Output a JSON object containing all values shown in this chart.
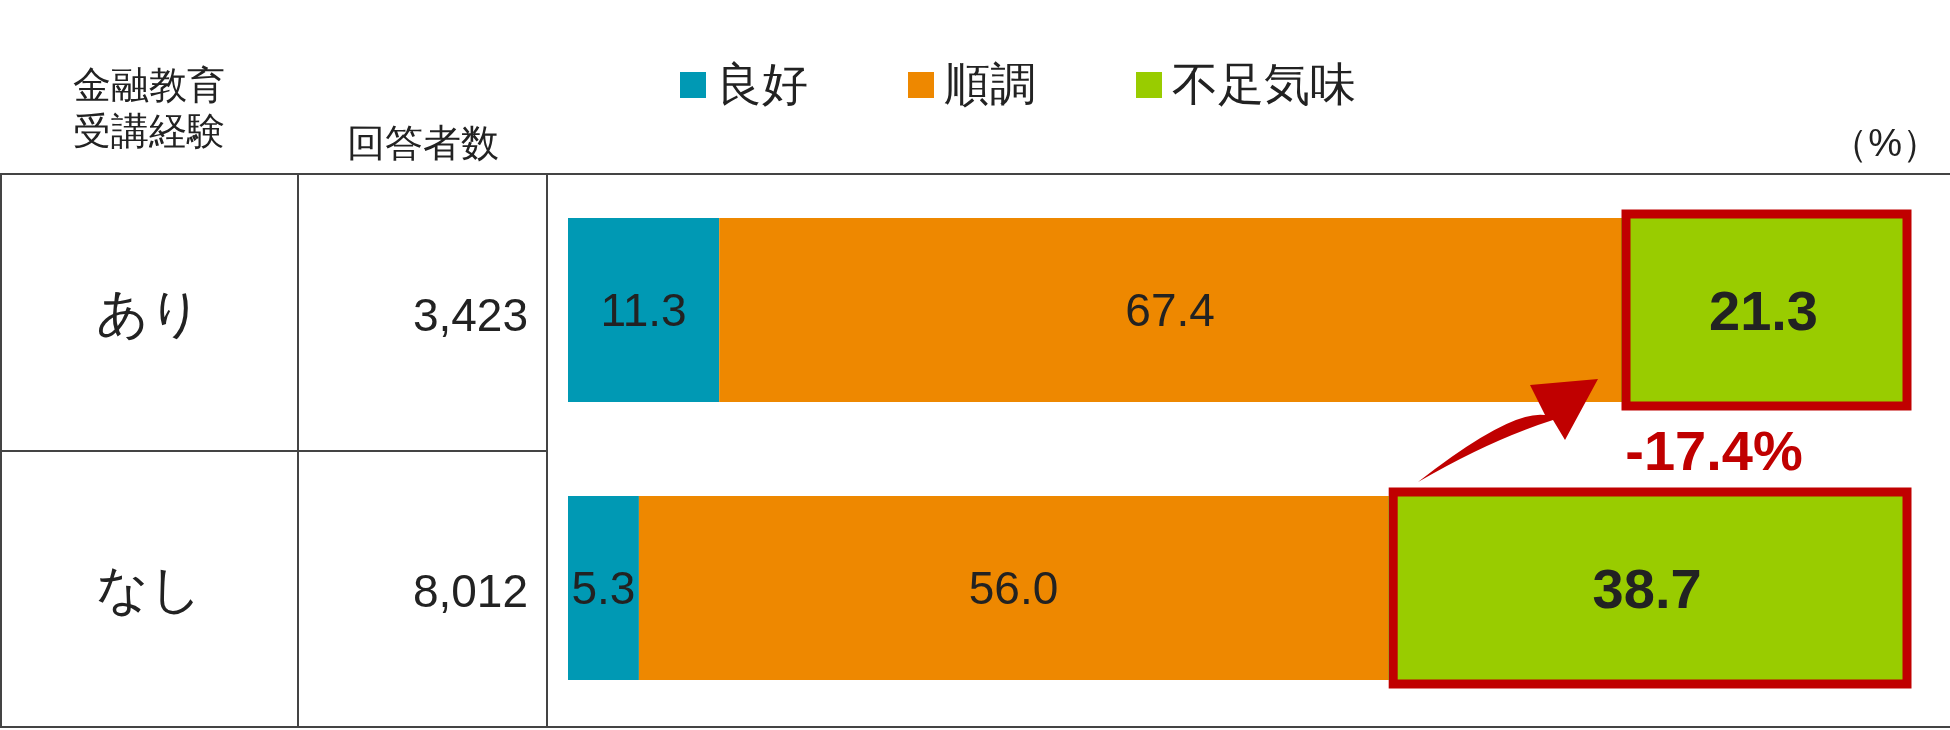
{
  "chart_data": {
    "type": "bar",
    "orientation": "horizontal",
    "stacked": true,
    "ylabel": "金融教育受講経験",
    "categories": [
      "あり",
      "なし"
    ],
    "xlim": [
      0,
      100
    ],
    "legend": "top",
    "series": [
      {
        "name": "良好",
        "color": "#0099b4",
        "values": [
          11.3,
          5.3
        ],
        "value_labels": [
          "11.3",
          "5.3"
        ]
      },
      {
        "name": "順調",
        "color": "#ee8800",
        "values": [
          67.4,
          56.0
        ],
        "value_labels": [
          "67.4",
          "56.0"
        ]
      },
      {
        "name": "不足気味",
        "color": "#99cc00",
        "values": [
          21.3,
          38.7
        ],
        "value_labels": [
          "21.3",
          "38.7"
        ]
      }
    ],
    "annotations": [
      "回答者数",
      "3,423",
      "8,012",
      "（%）",
      "-17.4%"
    ]
  }
}
